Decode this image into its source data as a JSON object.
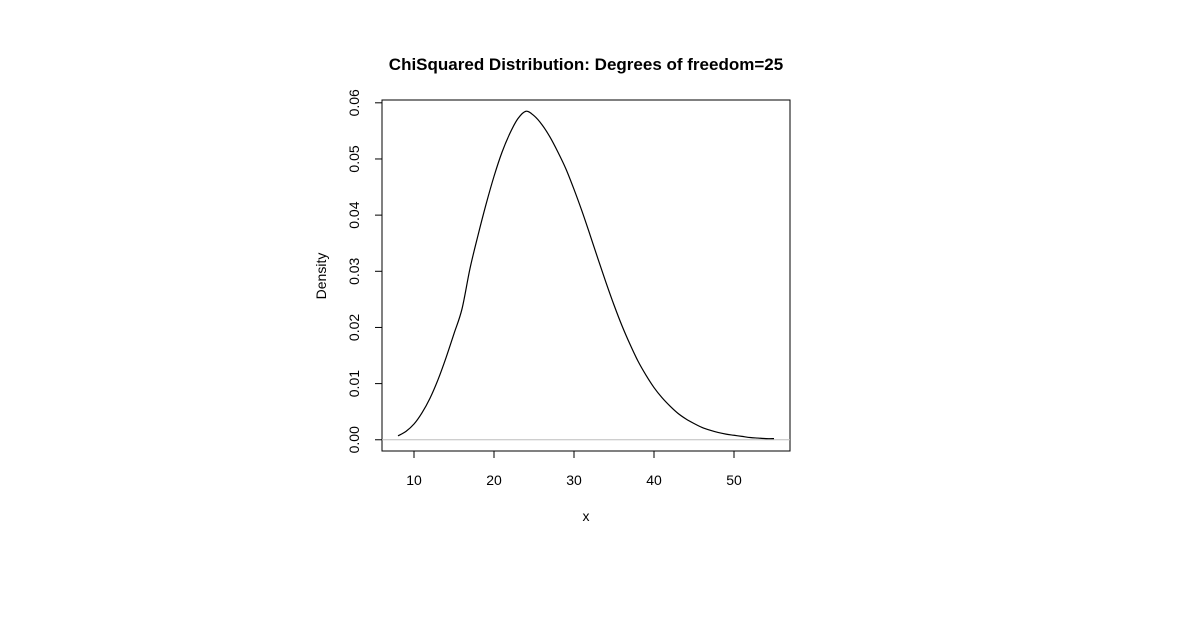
{
  "chart_data": {
    "type": "line",
    "title": "ChiSquared Distribution:  Degrees of freedom=25",
    "xlabel": "x",
    "ylabel": "Density",
    "xlim": [
      6,
      57
    ],
    "ylim": [
      -0.002,
      0.0605
    ],
    "x_ticks": [
      10,
      20,
      30,
      40,
      50
    ],
    "x_tick_labels": [
      "10",
      "20",
      "30",
      "40",
      "50"
    ],
    "y_ticks": [
      0.0,
      0.01,
      0.02,
      0.03,
      0.04,
      0.05,
      0.06
    ],
    "y_tick_labels": [
      "0.00",
      "0.01",
      "0.02",
      "0.03",
      "0.04",
      "0.05",
      "0.06"
    ],
    "grid": false,
    "legend": "none",
    "baseline": {
      "y": 0,
      "color": "#bebebe"
    },
    "series": [
      {
        "color": "#000000",
        "x": [
          8,
          9,
          10,
          11,
          12,
          13,
          14,
          15,
          16,
          17,
          18,
          19,
          20,
          21,
          22,
          23,
          24,
          25,
          26,
          27,
          28,
          29,
          30,
          31,
          32,
          33,
          34,
          35,
          36,
          37,
          38,
          39,
          40,
          41,
          42,
          43,
          44,
          45,
          46,
          47,
          48,
          49,
          50,
          51,
          52,
          53,
          54,
          55
        ],
        "y": [
          0.0007,
          0.0015,
          0.0028,
          0.0048,
          0.0074,
          0.0107,
          0.0146,
          0.0189,
          0.0233,
          0.0305,
          0.0364,
          0.0419,
          0.0469,
          0.0512,
          0.0546,
          0.0572,
          0.0585,
          0.0577,
          0.0561,
          0.0539,
          0.0512,
          0.0482,
          0.0446,
          0.0407,
          0.0365,
          0.0322,
          0.028,
          0.024,
          0.0203,
          0.017,
          0.014,
          0.0115,
          0.0093,
          0.0075,
          0.006,
          0.0047,
          0.0037,
          0.0029,
          0.0022,
          0.0017,
          0.0013,
          0.001,
          0.0008,
          0.0006,
          0.0004,
          0.0003,
          0.0002,
          0.0002
        ]
      }
    ]
  }
}
